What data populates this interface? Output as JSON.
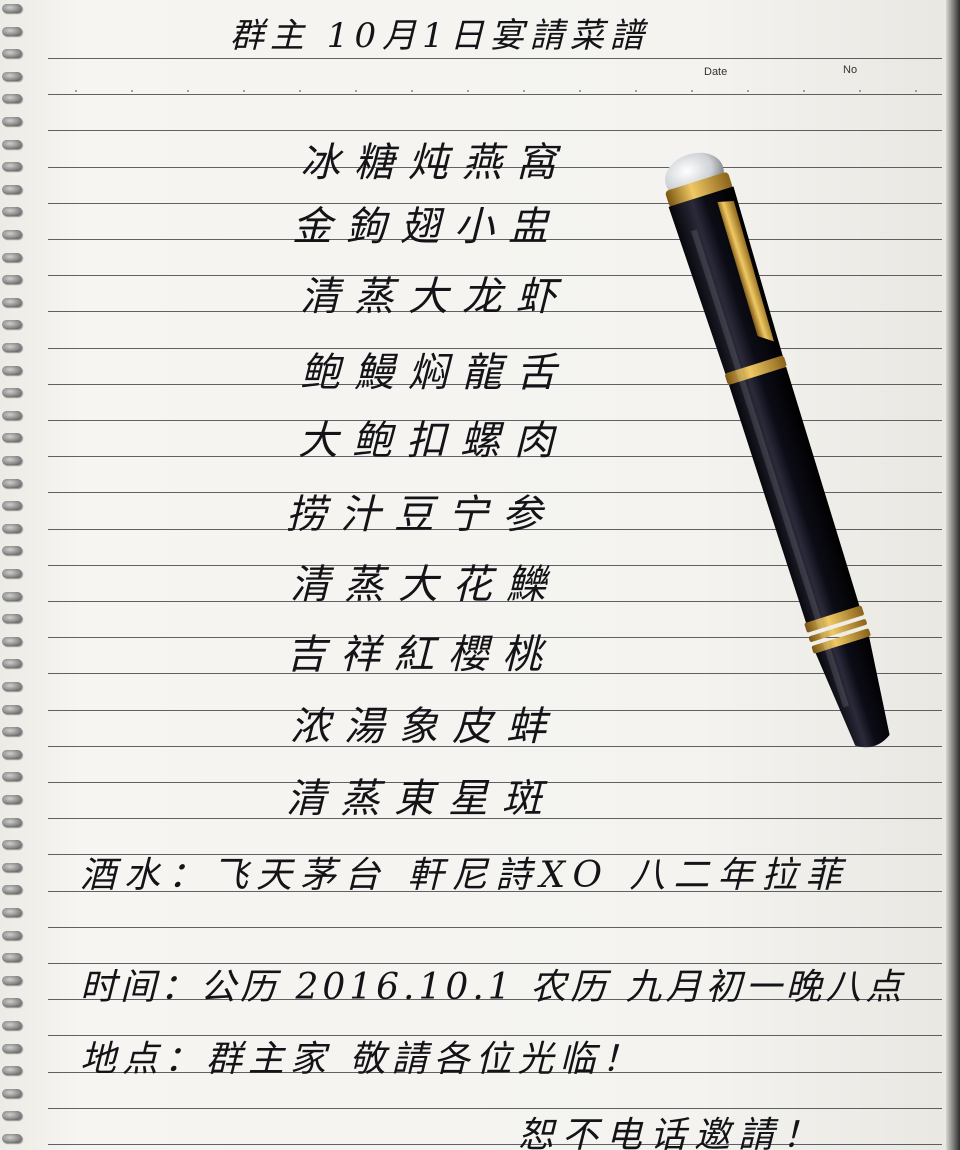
{
  "title": "群主 10月1日宴請菜譜",
  "header": {
    "date_label": "Date",
    "no_label": "No"
  },
  "menu": [
    "冰糖炖燕窩",
    "金鉤翅小盅",
    "清蒸大龙虾",
    "鲍鰻焖龍舌",
    "大鲍扣螺肉",
    "捞汁豆宁参",
    "清蒸大花鱳",
    "吉祥紅櫻桃",
    "浓湯象皮蚌",
    "清蒸東星斑"
  ],
  "drinks_line": "酒水：飞天茅台  軒尼詩XO  八二年拉菲",
  "time_line": "时间：公历 2016.10.1  农历 九月初一晚八点",
  "place_line": "地点：群主家    敬請各位光临！",
  "closing": "恕不电话邀請！",
  "colors": {
    "paper": "#f4f3ef",
    "ink": "#141418",
    "rule": "#2f2f35",
    "pen_body": "#0f0f1a",
    "pen_gold": "#c9962b"
  },
  "icons": [
    "fountain-pen-icon",
    "spiral-ring-icon"
  ]
}
